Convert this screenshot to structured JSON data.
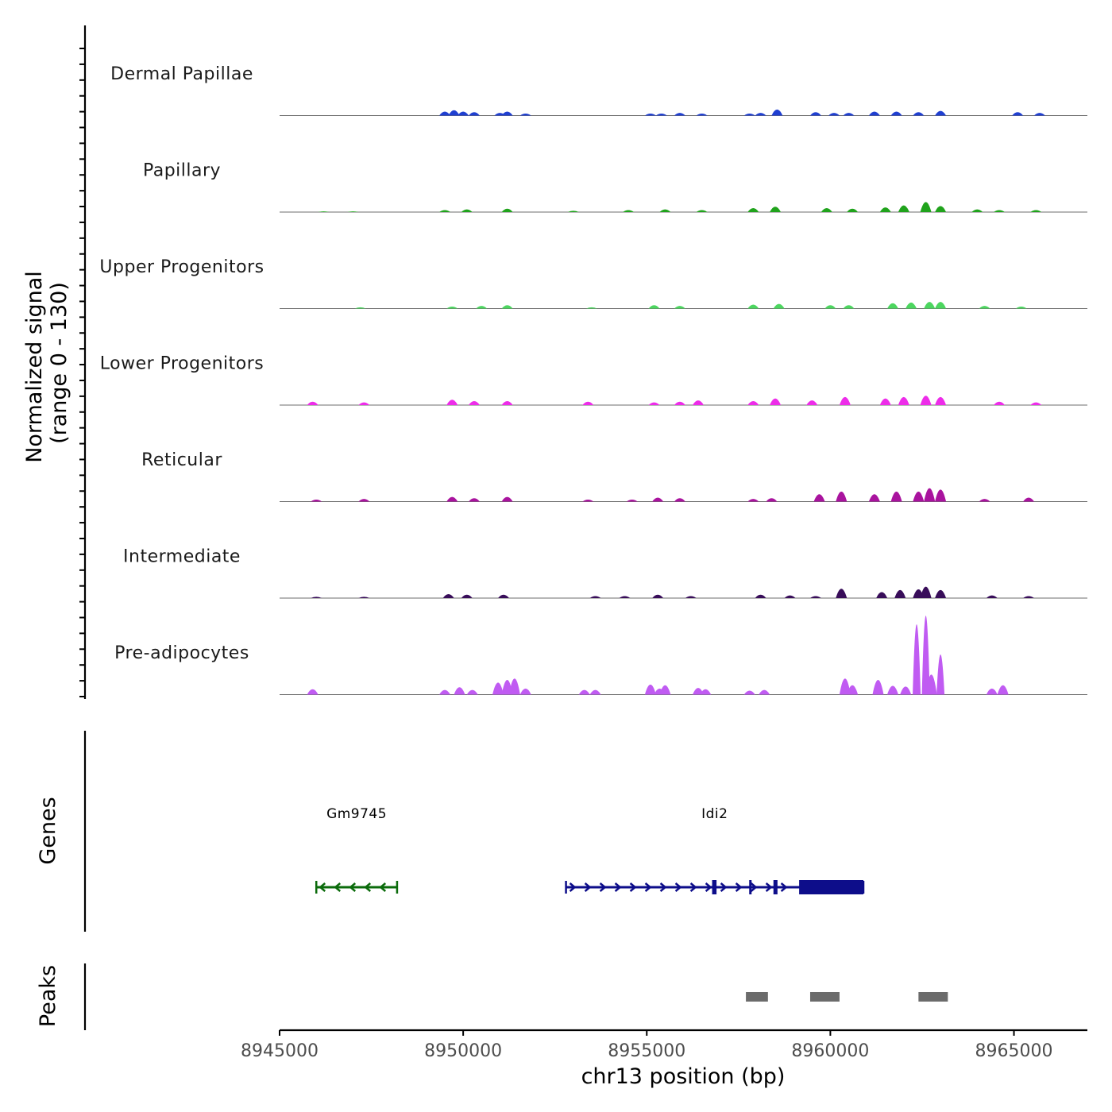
{
  "chart_data": {
    "type": "area",
    "region": {
      "chromosome": "chr13",
      "start": 8945000,
      "end": 8967000
    },
    "xlabel": "chr13 position (bp)",
    "x_ticks": [
      {
        "value": 8945000,
        "label": "8945000"
      },
      {
        "value": 8950000,
        "label": "8950000"
      },
      {
        "value": 8955000,
        "label": "8955000"
      },
      {
        "value": 8960000,
        "label": "8960000"
      },
      {
        "value": 8965000,
        "label": "8965000"
      }
    ],
    "coverage": {
      "ylabel": "Normalized signal",
      "ylabel_range": "(range 0 - 130)",
      "ylim": [
        0,
        130
      ],
      "series": [
        {
          "name": "Dermal Papillae",
          "color": "#1F3FD1",
          "peaks": [
            [
              8949500,
              6
            ],
            [
              8949750,
              8
            ],
            [
              8950000,
              6
            ],
            [
              8950300,
              5
            ],
            [
              8951000,
              4
            ],
            [
              8951200,
              6
            ],
            [
              8951700,
              3
            ],
            [
              8955100,
              3
            ],
            [
              8955400,
              3
            ],
            [
              8955900,
              4
            ],
            [
              8956500,
              3
            ],
            [
              8957800,
              3
            ],
            [
              8958100,
              4
            ],
            [
              8958550,
              9
            ],
            [
              8959600,
              5
            ],
            [
              8960100,
              4
            ],
            [
              8960500,
              4
            ],
            [
              8961200,
              6
            ],
            [
              8961800,
              6
            ],
            [
              8962400,
              5
            ],
            [
              8963000,
              7
            ],
            [
              8965100,
              5
            ],
            [
              8965700,
              4
            ]
          ]
        },
        {
          "name": "Papillary",
          "color": "#20A31C",
          "peaks": [
            [
              8946200,
              1
            ],
            [
              8947000,
              1
            ],
            [
              8949500,
              3
            ],
            [
              8950100,
              4
            ],
            [
              8951200,
              5
            ],
            [
              8953000,
              2
            ],
            [
              8954500,
              3
            ],
            [
              8955500,
              4
            ],
            [
              8956500,
              3
            ],
            [
              8957900,
              6
            ],
            [
              8958500,
              8
            ],
            [
              8959900,
              6
            ],
            [
              8960600,
              5
            ],
            [
              8961500,
              7
            ],
            [
              8962000,
              10
            ],
            [
              8962600,
              15
            ],
            [
              8963000,
              9
            ],
            [
              8964000,
              4
            ],
            [
              8964600,
              3
            ],
            [
              8965600,
              3
            ]
          ]
        },
        {
          "name": "Upper Progenitors",
          "color": "#4CD65F",
          "peaks": [
            [
              8947200,
              2
            ],
            [
              8949700,
              3
            ],
            [
              8950500,
              4
            ],
            [
              8951200,
              5
            ],
            [
              8953500,
              2
            ],
            [
              8955200,
              5
            ],
            [
              8955900,
              4
            ],
            [
              8957900,
              6
            ],
            [
              8958600,
              7
            ],
            [
              8960000,
              5
            ],
            [
              8960500,
              5
            ],
            [
              8961700,
              8
            ],
            [
              8962200,
              9
            ],
            [
              8962700,
              10
            ],
            [
              8963000,
              10
            ],
            [
              8964200,
              4
            ],
            [
              8965200,
              3
            ]
          ]
        },
        {
          "name": "Lower Progenitors",
          "color": "#ED2CE9",
          "peaks": [
            [
              8945900,
              5
            ],
            [
              8947300,
              4
            ],
            [
              8949700,
              8
            ],
            [
              8950300,
              6
            ],
            [
              8951200,
              6
            ],
            [
              8953400,
              5
            ],
            [
              8955200,
              4
            ],
            [
              8955900,
              5
            ],
            [
              8956400,
              7
            ],
            [
              8957900,
              6
            ],
            [
              8958500,
              10
            ],
            [
              8959500,
              7
            ],
            [
              8960400,
              12
            ],
            [
              8961500,
              10
            ],
            [
              8962000,
              12
            ],
            [
              8962600,
              14
            ],
            [
              8963000,
              12
            ],
            [
              8964600,
              5
            ],
            [
              8965600,
              4
            ]
          ]
        },
        {
          "name": "Reticular",
          "color": "#A9139E",
          "peaks": [
            [
              8946000,
              3
            ],
            [
              8947300,
              4
            ],
            [
              8949700,
              7
            ],
            [
              8950300,
              5
            ],
            [
              8951200,
              7
            ],
            [
              8953400,
              3
            ],
            [
              8954600,
              3
            ],
            [
              8955300,
              6
            ],
            [
              8955900,
              5
            ],
            [
              8957900,
              4
            ],
            [
              8958400,
              5
            ],
            [
              8959700,
              11
            ],
            [
              8960300,
              15
            ],
            [
              8961200,
              11
            ],
            [
              8961800,
              15
            ],
            [
              8962400,
              15
            ],
            [
              8962700,
              20
            ],
            [
              8963000,
              18
            ],
            [
              8964200,
              4
            ],
            [
              8965400,
              6
            ]
          ]
        },
        {
          "name": "Intermediate",
          "color": "#380D59",
          "peaks": [
            [
              8946000,
              2
            ],
            [
              8947300,
              2
            ],
            [
              8949600,
              6
            ],
            [
              8950100,
              5
            ],
            [
              8951100,
              5
            ],
            [
              8953600,
              3
            ],
            [
              8954400,
              3
            ],
            [
              8955300,
              5
            ],
            [
              8956200,
              3
            ],
            [
              8958100,
              5
            ],
            [
              8958900,
              4
            ],
            [
              8959600,
              3
            ],
            [
              8960300,
              14
            ],
            [
              8961400,
              9
            ],
            [
              8961900,
              12
            ],
            [
              8962400,
              13
            ],
            [
              8962600,
              17
            ],
            [
              8963000,
              12
            ],
            [
              8964400,
              4
            ],
            [
              8965400,
              3
            ]
          ]
        },
        {
          "name": "Pre-adipocytes",
          "color": "#C05BF2",
          "peaks": [
            [
              8945900,
              8
            ],
            [
              8949500,
              7
            ],
            [
              8949900,
              11
            ],
            [
              8950250,
              7
            ],
            [
              8950950,
              18
            ],
            [
              8951200,
              22
            ],
            [
              8951400,
              24
            ],
            [
              8951700,
              9
            ],
            [
              8953300,
              7
            ],
            [
              8953600,
              7
            ],
            [
              8955100,
              15
            ],
            [
              8955350,
              9
            ],
            [
              8955500,
              14
            ],
            [
              8956400,
              10
            ],
            [
              8956600,
              8
            ],
            [
              8957800,
              6
            ],
            [
              8958200,
              7
            ],
            [
              8960400,
              24
            ],
            [
              8960600,
              14
            ],
            [
              8961300,
              22
            ],
            [
              8961700,
              13
            ],
            [
              8962050,
              12
            ],
            [
              8962350,
              105
            ],
            [
              8962600,
              118
            ],
            [
              8962750,
              30
            ],
            [
              8963000,
              60
            ],
            [
              8964400,
              9
            ],
            [
              8964700,
              14
            ]
          ]
        }
      ]
    },
    "genes": {
      "ylabel": "Genes",
      "items": [
        {
          "name": "Gm9745",
          "start": 8946000,
          "end": 8948200,
          "strand": "-",
          "color": "#0B6B0B",
          "exons": [],
          "utr": []
        },
        {
          "name": "Idi2",
          "start": 8952800,
          "end": 8960900,
          "strand": "+",
          "color": "#0D0D8A",
          "exons": [
            [
              8956780,
              8956900
            ],
            [
              8957790,
              8957830
            ],
            [
              8958450,
              8958560
            ]
          ],
          "utr": [
            [
              8959150,
              8960900
            ]
          ]
        }
      ]
    },
    "peaks_track": {
      "ylabel": "Peaks",
      "color": "#6B6B6B",
      "regions": [
        [
          8957700,
          8958300
        ],
        [
          8959450,
          8960250
        ],
        [
          8962400,
          8963200
        ]
      ]
    }
  }
}
